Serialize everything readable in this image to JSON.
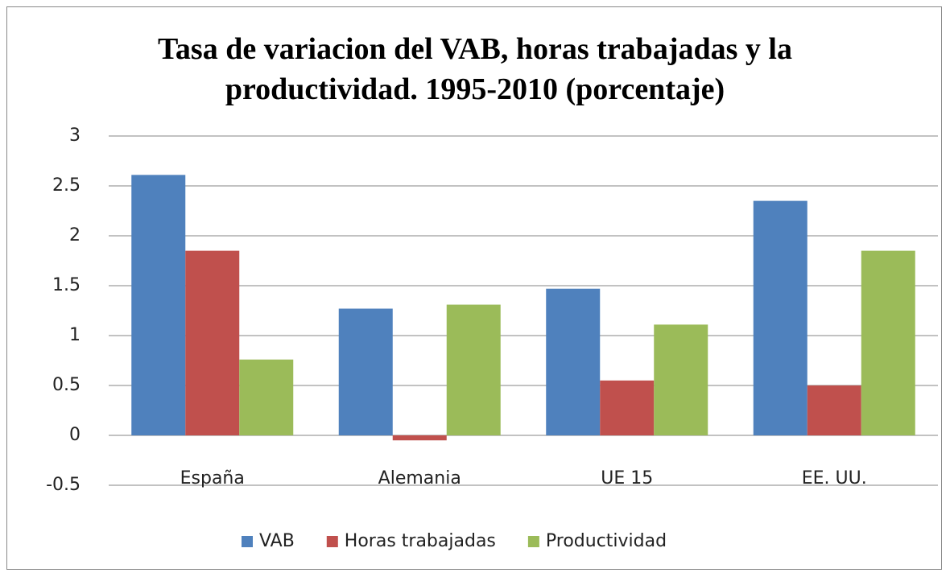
{
  "chart_data": {
    "type": "bar",
    "title": "Tasa de variacion del VAB, horas trabajadas y la productividad. 1995-2010 (porcentaje)",
    "categories": [
      "España",
      "Alemania",
      "UE 15",
      "EE. UU."
    ],
    "series": [
      {
        "name": "VAB",
        "color": "#4f81bd",
        "values": [
          2.61,
          1.27,
          1.47,
          2.35
        ]
      },
      {
        "name": "Horas trabajadas",
        "color": "#c0504d",
        "values": [
          1.85,
          -0.05,
          0.55,
          0.5
        ]
      },
      {
        "name": "Productividad",
        "color": "#9bbb59",
        "values": [
          0.76,
          1.31,
          1.11,
          1.85
        ]
      }
    ],
    "ylim": [
      -0.5,
      3
    ],
    "yticks": [
      -0.5,
      0,
      0.5,
      1,
      1.5,
      2,
      2.5,
      3
    ],
    "grid": true,
    "legend": "bottom"
  }
}
